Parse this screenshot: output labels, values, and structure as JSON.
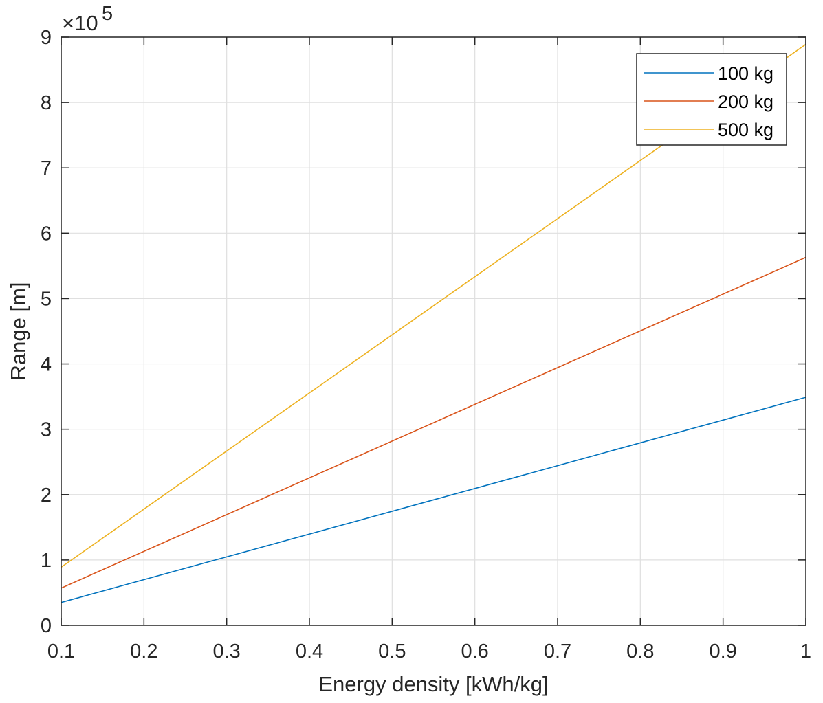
{
  "chart_data": {
    "type": "line",
    "title": "",
    "xlabel": "Energy density [kWh/kg]",
    "ylabel": "Range [m]",
    "xlim": [
      0.1,
      1
    ],
    "ylim": [
      0,
      9
    ],
    "y_exponent_label": "×10",
    "y_exponent": "5",
    "grid": true,
    "legend_location": "top-right",
    "x_ticks": [
      0.1,
      0.2,
      0.3,
      0.4,
      0.5,
      0.6,
      0.7,
      0.8,
      0.9,
      1
    ],
    "x_tick_labels": [
      "0.1",
      "0.2",
      "0.3",
      "0.4",
      "0.5",
      "0.6",
      "0.7",
      "0.8",
      "0.9",
      "1"
    ],
    "y_ticks": [
      0,
      1,
      2,
      3,
      4,
      5,
      6,
      7,
      8,
      9
    ],
    "y_tick_labels": [
      "0",
      "1",
      "2",
      "3",
      "4",
      "5",
      "6",
      "7",
      "8",
      "9"
    ],
    "x": [
      0.1,
      1
    ],
    "series": [
      {
        "name": "100 kg",
        "color": "#0072BD",
        "values": [
          0.35,
          3.49
        ]
      },
      {
        "name": "200 kg",
        "color": "#D95319",
        "values": [
          0.57,
          5.63
        ]
      },
      {
        "name": "500 kg",
        "color": "#EDB120",
        "values": [
          0.89,
          8.89
        ]
      }
    ]
  }
}
